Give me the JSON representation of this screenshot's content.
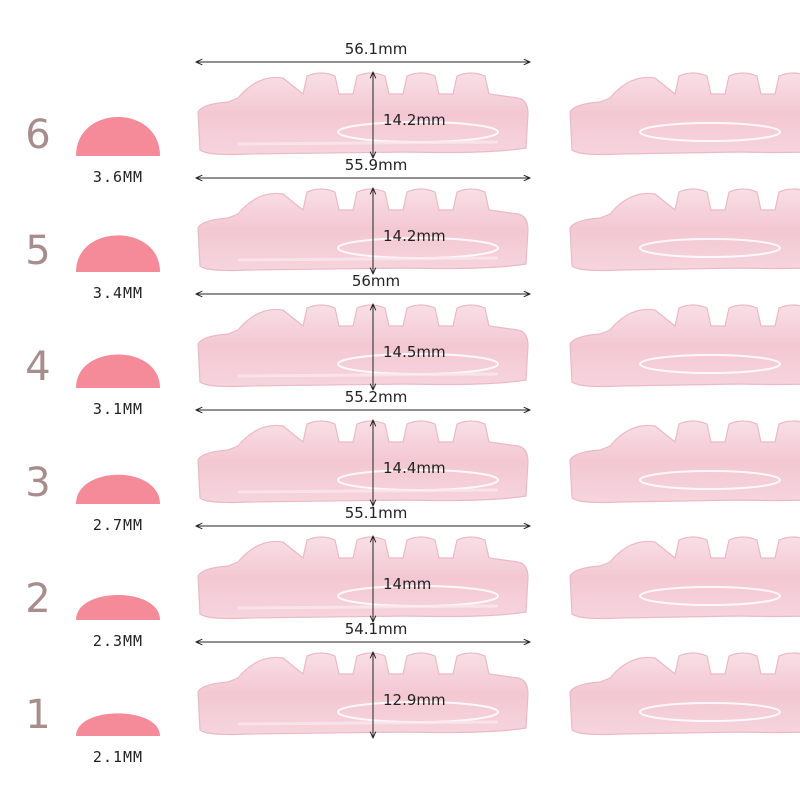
{
  "colors": {
    "background": "#ffffff",
    "level_number": "#a88d8d",
    "curl_shape": "#f58a98",
    "rod_fill": "#f5c9d3",
    "rod_edge": "#eab4c2",
    "measure_line": "#222222"
  },
  "rods": [
    {
      "level": "6",
      "curl_size": "3.6MM",
      "length": "56.1mm",
      "height": "14.2mm",
      "curl_height": 1.0
    },
    {
      "level": "5",
      "curl_size": "3.4MM",
      "length": "55.9mm",
      "height": "14.2mm",
      "curl_height": 0.94
    },
    {
      "level": "4",
      "curl_size": "3.1MM",
      "length": "56mm",
      "height": "14.5mm",
      "curl_height": 0.86
    },
    {
      "level": "3",
      "curl_size": "2.7MM",
      "length": "55.2mm",
      "height": "14.4mm",
      "curl_height": 0.75
    },
    {
      "level": "2",
      "curl_size": "2.3MM",
      "length": "55.1mm",
      "height": "14mm",
      "curl_height": 0.64
    },
    {
      "level": "1",
      "curl_size": "2.1MM",
      "length": "54.1mm",
      "height": "12.9mm",
      "curl_height": 0.58
    }
  ]
}
